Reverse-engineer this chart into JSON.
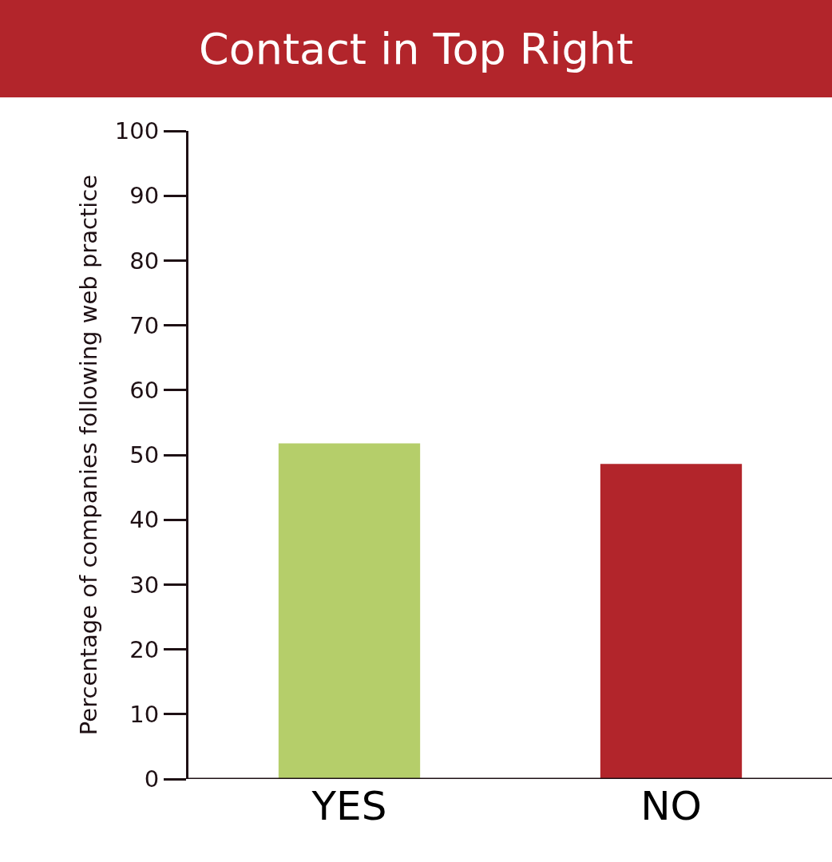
{
  "chart_data": {
    "type": "bar",
    "title": "Contact in Top Right",
    "ylabel": "Percentage of companies following web practice",
    "categories": [
      "YES",
      "NO"
    ],
    "values": [
      51.8,
      48.6
    ],
    "colors": [
      "#b5ce6a",
      "#b2252b"
    ],
    "ylim": [
      0,
      100
    ],
    "yticks": [
      0,
      10,
      20,
      30,
      40,
      50,
      60,
      70,
      80,
      90,
      100
    ],
    "grid": false
  }
}
